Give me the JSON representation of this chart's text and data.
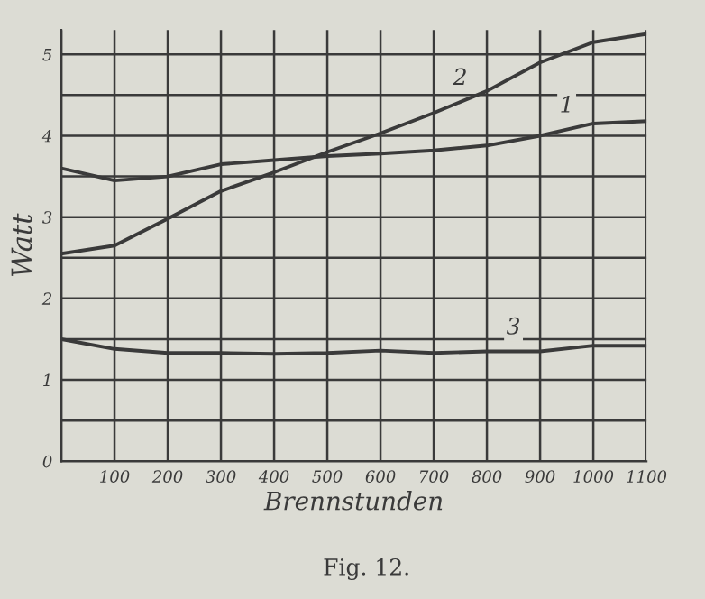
{
  "chart_data": {
    "type": "line",
    "xlabel": "Brennstunden",
    "ylabel": "Watt",
    "x": [
      0,
      100,
      200,
      300,
      400,
      500,
      600,
      700,
      800,
      900,
      1000,
      1100
    ],
    "series": [
      {
        "name": "1",
        "color": "#3a3a3a",
        "values": [
          3.6,
          3.45,
          3.5,
          3.65,
          3.7,
          3.75,
          3.78,
          3.82,
          3.88,
          4.0,
          4.15,
          4.18
        ]
      },
      {
        "name": "2",
        "color": "#3a3a3a",
        "values": [
          2.55,
          2.65,
          2.98,
          3.32,
          3.55,
          3.8,
          4.03,
          4.28,
          4.55,
          4.9,
          5.15,
          5.25
        ]
      },
      {
        "name": "3",
        "color": "#3a3a3a",
        "values": [
          1.5,
          1.38,
          1.33,
          1.33,
          1.32,
          1.33,
          1.36,
          1.33,
          1.35,
          1.35,
          1.42,
          1.42
        ]
      }
    ],
    "xlim": [
      0,
      1100
    ],
    "xticks": [
      {
        "value": 0,
        "label": null
      },
      100,
      200,
      300,
      400,
      500,
      600,
      700,
      800,
      900,
      1000,
      1100
    ],
    "ylim": [
      0,
      5.3
    ],
    "yticks": [
      0,
      {
        "value": 0.5,
        "label": null
      },
      1,
      {
        "value": 1.5,
        "label": null
      },
      2,
      {
        "value": 2.5,
        "label": null
      },
      3,
      {
        "value": 3.5,
        "label": null
      },
      4,
      {
        "value": 4.5,
        "label": null
      },
      5
    ],
    "grid": true,
    "legend": false,
    "marker": "none",
    "line_style": "solid",
    "annotations": [
      "Fig. 12."
    ]
  }
}
